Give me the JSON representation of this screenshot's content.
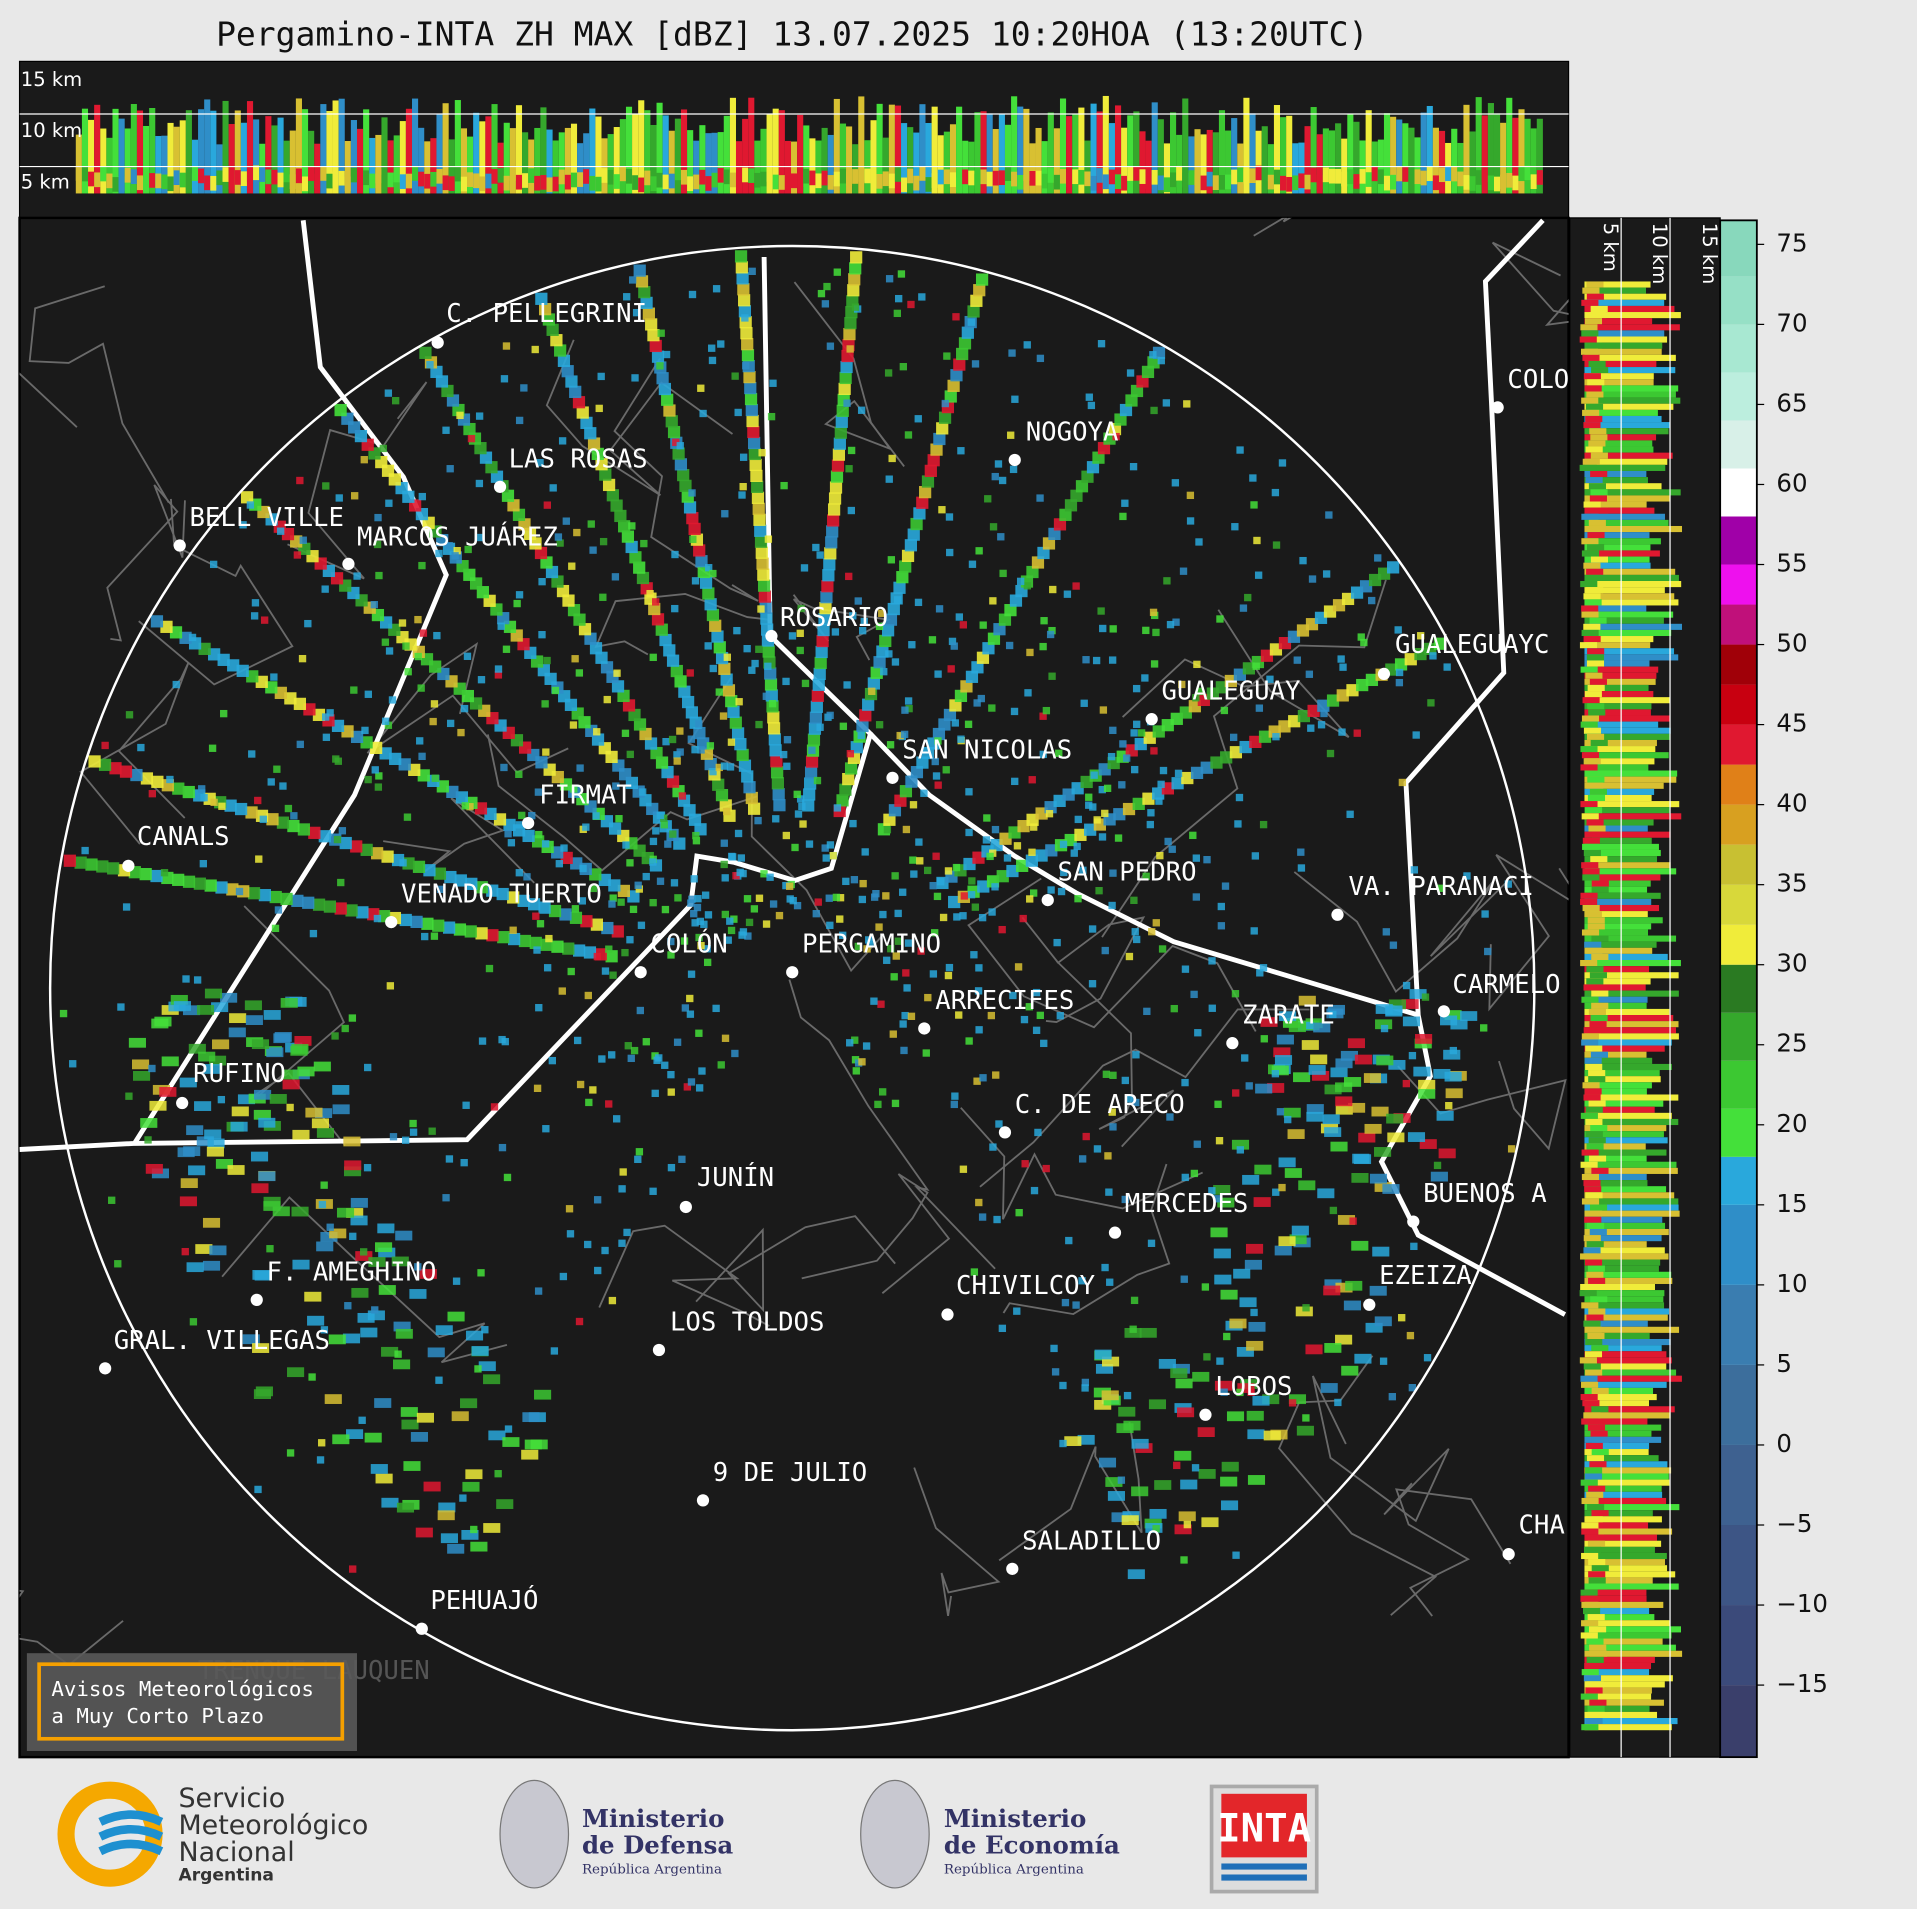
{
  "header": {
    "title": "Pergamino-INTA ZH MAX [dBZ] 13.07.2025 10:20HOA (13:20UTC)"
  },
  "profiles": {
    "top_heights": [
      "15 km",
      "10 km",
      "5 km"
    ],
    "side_heights": [
      "5 km",
      "10 km",
      "15 km"
    ]
  },
  "map": {
    "cities": [
      "C. PELLEGRINI",
      "LAS ROSAS",
      "BELL VILLE",
      "MARCOS JUÁREZ",
      "NOGOYA",
      "COLO",
      "ROSARIO",
      "GUALEGUAYC",
      "GUALEGUAY",
      "SAN NICOLAS",
      "FIRMAT",
      "CANALS",
      "SAN PEDRO",
      "VENADO TUERTO",
      "VA. PARANACI",
      "COLÓN",
      "PERGAMINO",
      "CARMELO",
      "ARRECIFES",
      "ZARATE",
      "RUFINO",
      "C. DE ARECO",
      "JUNÍN",
      "MERCEDES",
      "BUENOS A",
      "F. AMEGHINO",
      "EZEIZA",
      "CHIVILCOY",
      "LOS TOLDOS",
      "GRAL. VILLEGAS",
      "LOBOS",
      "9 DE JULIO",
      "SALADILLO",
      "CHA",
      "PEHUAJÓ"
    ],
    "faded_label": "TRENQUE LAUQUEN"
  },
  "colorbar": {
    "lim": [
      -19.5,
      76.5
    ],
    "ticks": [
      75,
      70,
      65,
      60,
      55,
      50,
      45,
      40,
      35,
      30,
      25,
      20,
      15,
      10,
      5,
      0,
      {
        "value": -5,
        "label": "−5"
      },
      {
        "value": -10,
        "label": "−10"
      },
      {
        "value": -15,
        "label": "−15"
      }
    ],
    "bounds": [
      -19.5,
      -15,
      -10,
      -5,
      0,
      5,
      10,
      15,
      18,
      21,
      24,
      27,
      30,
      32.5,
      35,
      37.5,
      40,
      42.5,
      45,
      47.5,
      50,
      52.5,
      55,
      58,
      61,
      64,
      67,
      70,
      73,
      76.5
    ],
    "colors": [
      "#3a3f6b",
      "#3b4a7a",
      "#3d5585",
      "#3e6190",
      "#3c6e9c",
      "#3a7db0",
      "#2f8ec8",
      "#29a8dc",
      "#44e03a",
      "#3cc832",
      "#35a82c",
      "#2a7a22",
      "#f0ec3a",
      "#d8d83a",
      "#c8c032",
      "#d8a020",
      "#e08018",
      "#e01830",
      "#c80010",
      "#a00008",
      "#c0107a",
      "#ee10ee",
      "#a000a8",
      "#ffffff",
      "#d8f0e8",
      "#bceede",
      "#a8e8d2",
      "#96e0c6",
      "#88d8bc"
    ]
  },
  "warning": {
    "lines": [
      "Avisos Meteorológicos",
      "a Muy Corto Plazo"
    ]
  },
  "footer": {
    "smn": [
      "Servicio",
      "Meteorológico",
      "Nacional",
      "Argentina"
    ],
    "defensa": [
      "Ministerio",
      "de Defensa",
      "República Argentina"
    ],
    "economia": [
      "Ministerio",
      "de Economía",
      "República Argentina"
    ],
    "inta": "INTA"
  }
}
